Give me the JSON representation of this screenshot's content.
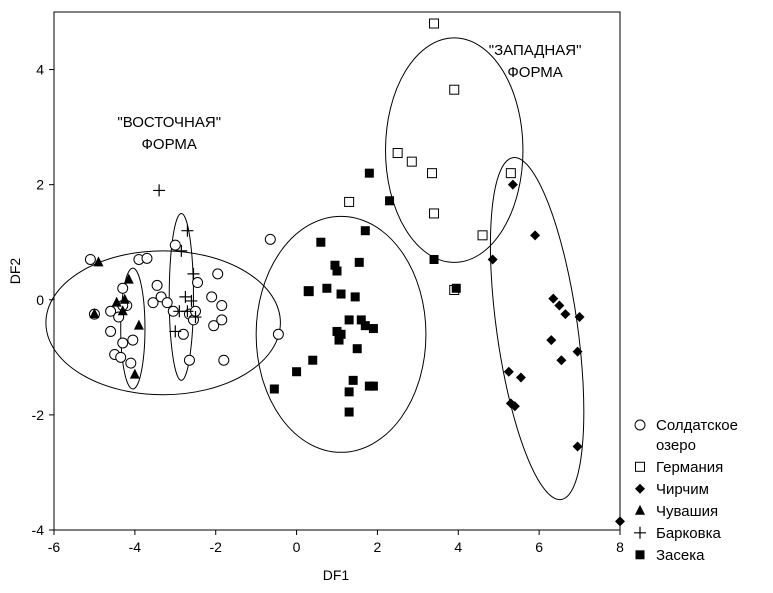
{
  "chart_data": {
    "type": "scatter",
    "xlabel": "DF1",
    "ylabel": "DF2",
    "xlim": [
      -6,
      8
    ],
    "ylim": [
      -4,
      5
    ],
    "xticks": [
      -6,
      -4,
      -2,
      0,
      2,
      4,
      6,
      8
    ],
    "yticks": [
      -4,
      -2,
      0,
      2,
      4
    ],
    "grid": false,
    "legend_position": "bottom-right",
    "annotations": [
      {
        "lines": [
          "\"ВОСТОЧНАЯ\"",
          "ФОРМА"
        ],
        "x": -3.15,
        "y": 3.0
      },
      {
        "lines": [
          "\"ЗАПАДНАЯ\"",
          "ФОРМА"
        ],
        "x": 5.9,
        "y": 4.25
      }
    ],
    "ellipses": [
      {
        "cx": -3.3,
        "cy": -0.4,
        "rx": 2.9,
        "ry": 1.25,
        "angle_deg": 0
      },
      {
        "cx": -4.05,
        "cy": -0.5,
        "rx": 0.3,
        "ry": 1.05,
        "angle_deg": 0
      },
      {
        "cx": -2.85,
        "cy": 0.05,
        "rx": 0.3,
        "ry": 1.45,
        "angle_deg": 0
      },
      {
        "cx": 1.1,
        "cy": -0.6,
        "rx": 2.1,
        "ry": 2.05,
        "angle_deg": 0
      },
      {
        "cx": 3.9,
        "cy": 2.6,
        "rx": 1.7,
        "ry": 1.95,
        "angle_deg": 0
      },
      {
        "cx": 5.95,
        "cy": -0.5,
        "rx": 1.0,
        "ry": 3.0,
        "angle_deg": -8
      }
    ],
    "series": [
      {
        "name": "Солдатское озеро",
        "marker": "circle-open",
        "points": [
          [
            -5.1,
            0.7
          ],
          [
            -5.0,
            -0.25
          ],
          [
            -4.6,
            -0.2
          ],
          [
            -4.6,
            -0.55
          ],
          [
            -4.5,
            -0.95
          ],
          [
            -4.4,
            -0.3
          ],
          [
            -4.35,
            -1.0
          ],
          [
            -4.3,
            -0.75
          ],
          [
            -4.2,
            -0.1
          ],
          [
            -4.1,
            -1.1
          ],
          [
            -4.05,
            -0.7
          ],
          [
            -4.3,
            0.2
          ],
          [
            -4.3,
            -0.1
          ],
          [
            -3.9,
            0.7
          ],
          [
            -3.7,
            0.72
          ],
          [
            -3.55,
            -0.05
          ],
          [
            -3.45,
            0.25
          ],
          [
            -3.35,
            0.05
          ],
          [
            -3.2,
            -0.05
          ],
          [
            -3.05,
            -0.2
          ],
          [
            -3.0,
            0.95
          ],
          [
            -2.8,
            -0.6
          ],
          [
            -2.65,
            -0.25
          ],
          [
            -2.55,
            -0.35
          ],
          [
            -2.45,
            0.3
          ],
          [
            -2.1,
            0.05
          ],
          [
            -2.05,
            -0.45
          ],
          [
            -1.95,
            0.45
          ],
          [
            -1.85,
            -0.1
          ],
          [
            -1.85,
            -0.35
          ],
          [
            -1.8,
            -1.05
          ],
          [
            -2.65,
            -1.05
          ],
          [
            -0.65,
            1.05
          ],
          [
            -0.45,
            -0.6
          ],
          [
            -2.5,
            -0.2
          ]
        ]
      },
      {
        "name": "Германия",
        "marker": "square-open",
        "points": [
          [
            3.4,
            4.8
          ],
          [
            3.9,
            3.65
          ],
          [
            2.5,
            2.55
          ],
          [
            2.85,
            2.4
          ],
          [
            3.35,
            2.2
          ],
          [
            5.3,
            2.2
          ],
          [
            1.3,
            1.7
          ],
          [
            3.4,
            1.5
          ],
          [
            4.6,
            1.12
          ],
          [
            3.9,
            0.17
          ],
          [
            0.3,
            0.15
          ]
        ]
      },
      {
        "name": "Чирчим",
        "marker": "diamond",
        "points": [
          [
            5.35,
            2.0
          ],
          [
            5.9,
            1.12
          ],
          [
            4.85,
            0.7
          ],
          [
            6.35,
            0.02
          ],
          [
            6.5,
            -0.1
          ],
          [
            6.65,
            -0.25
          ],
          [
            7.0,
            -0.3
          ],
          [
            6.3,
            -0.7
          ],
          [
            6.95,
            -0.9
          ],
          [
            6.55,
            -1.05
          ],
          [
            5.25,
            -1.25
          ],
          [
            5.55,
            -1.35
          ],
          [
            5.3,
            -1.8
          ],
          [
            5.4,
            -1.85
          ],
          [
            6.95,
            -2.55
          ],
          [
            8.0,
            -3.85
          ]
        ]
      },
      {
        "name": "Чувашия",
        "marker": "triangle",
        "points": [
          [
            -4.9,
            0.65
          ],
          [
            -5.0,
            -0.25
          ],
          [
            -4.45,
            -0.05
          ],
          [
            -4.3,
            -0.2
          ],
          [
            -4.15,
            0.35
          ],
          [
            -4.25,
            0.0
          ],
          [
            -3.9,
            -0.45
          ],
          [
            -4.0,
            -1.3
          ]
        ]
      },
      {
        "name": "Барковка",
        "marker": "plus",
        "points": [
          [
            -3.4,
            1.9
          ],
          [
            -2.7,
            1.2
          ],
          [
            -2.85,
            0.85
          ],
          [
            -2.55,
            0.45
          ],
          [
            -2.75,
            0.05
          ],
          [
            -2.6,
            -0.02
          ],
          [
            -2.9,
            -0.2
          ],
          [
            -2.7,
            -0.2
          ],
          [
            -2.5,
            -0.3
          ],
          [
            -3.0,
            -0.55
          ]
        ]
      },
      {
        "name": "Засека",
        "marker": "square",
        "points": [
          [
            1.8,
            2.2
          ],
          [
            2.3,
            1.72
          ],
          [
            0.6,
            1.0
          ],
          [
            1.7,
            1.2
          ],
          [
            0.95,
            0.6
          ],
          [
            1.0,
            0.5
          ],
          [
            1.55,
            0.65
          ],
          [
            3.4,
            0.7
          ],
          [
            0.3,
            0.15
          ],
          [
            0.75,
            0.2
          ],
          [
            1.1,
            0.1
          ],
          [
            1.45,
            0.05
          ],
          [
            3.95,
            0.2
          ],
          [
            1.3,
            -0.35
          ],
          [
            1.6,
            -0.35
          ],
          [
            1.7,
            -0.45
          ],
          [
            1.9,
            -0.5
          ],
          [
            1.0,
            -0.55
          ],
          [
            1.1,
            -0.6
          ],
          [
            1.05,
            -0.7
          ],
          [
            1.5,
            -0.85
          ],
          [
            0.4,
            -1.05
          ],
          [
            0.0,
            -1.25
          ],
          [
            1.4,
            -1.4
          ],
          [
            1.8,
            -1.5
          ],
          [
            1.9,
            -1.5
          ],
          [
            1.3,
            -1.6
          ],
          [
            -0.55,
            -1.55
          ],
          [
            1.3,
            -1.95
          ]
        ]
      }
    ]
  }
}
